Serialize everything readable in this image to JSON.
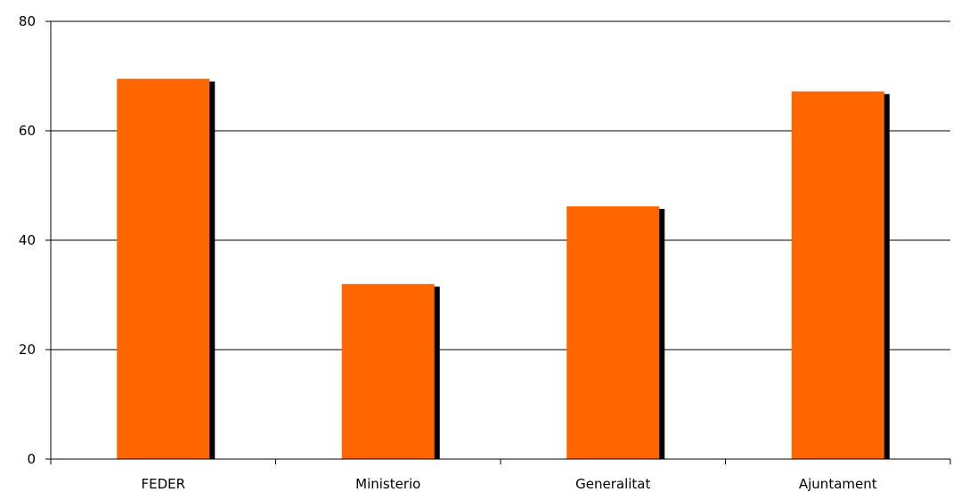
{
  "chart_data": {
    "type": "bar",
    "title": "",
    "xlabel": "",
    "ylabel": "",
    "categories": [
      "FEDER",
      "Ministerio",
      "Generalitat",
      "Ajuntament"
    ],
    "values": [
      69.5,
      32,
      46.2,
      67.2
    ],
    "ylim": [
      0,
      80
    ],
    "yticks": [
      "0",
      "20",
      "40",
      "60",
      "80"
    ],
    "grid": true,
    "legend": "none",
    "colors": {
      "bar": "#ff6600",
      "shadow": "#000000",
      "grid": "#000000",
      "axis": "#000000"
    }
  }
}
